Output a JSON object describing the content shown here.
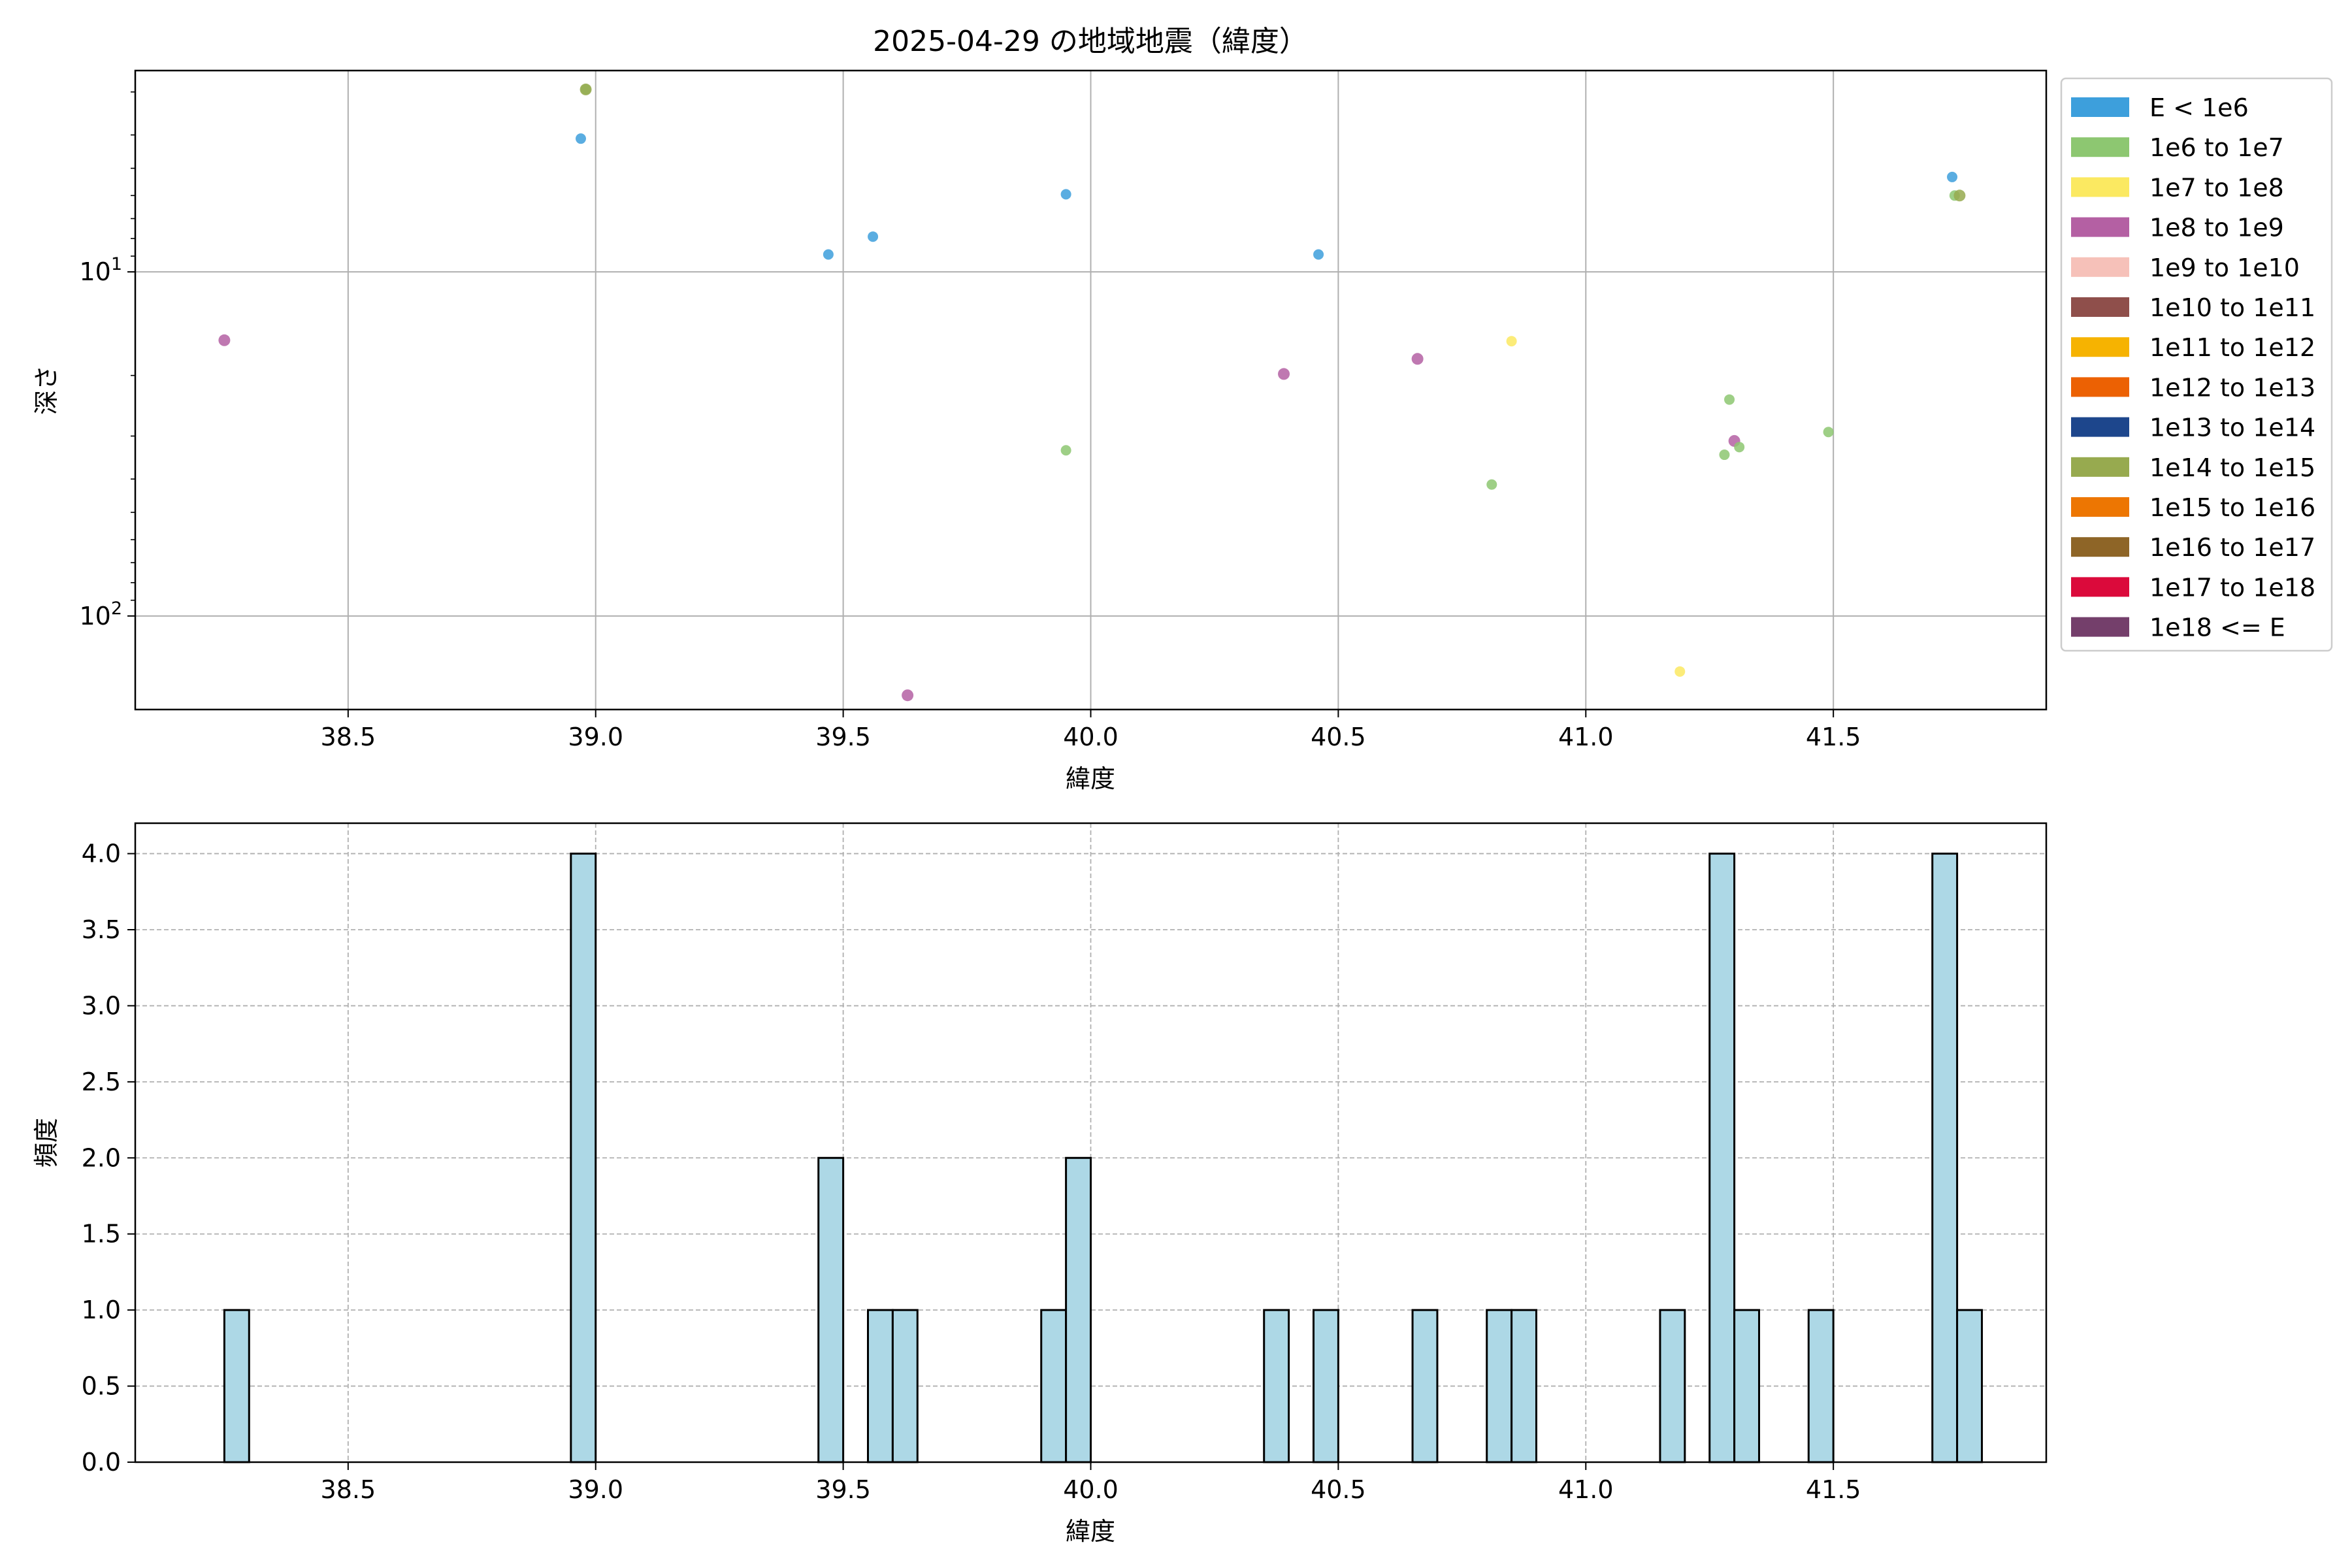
{
  "chart_data": [
    {
      "type": "scatter",
      "title": "2025-04-29 の地域地震（緯度）",
      "xlabel": "緯度",
      "ylabel": "深さ",
      "xlim": [
        38.07,
        41.93
      ],
      "ylim": [
        187,
        2.6
      ],
      "yscale": "log",
      "y_inverted": true,
      "grid": true,
      "x_ticks": [
        "38.5",
        "39.0",
        "39.5",
        "40.0",
        "40.5",
        "41.0",
        "41.5"
      ],
      "x_tick_values": [
        38.5,
        39.0,
        39.5,
        40.0,
        40.5,
        41.0,
        41.5
      ],
      "y_ticks": [
        {
          "value": 10,
          "base": "10",
          "exp": "1"
        },
        {
          "value": 100,
          "base": "10",
          "exp": "2"
        }
      ],
      "legend_position": "outside-right-top",
      "legend": [
        {
          "label": "E < 1e6",
          "color": "#3d9fdc"
        },
        {
          "label": "1e6 to 1e7",
          "color": "#8dc771"
        },
        {
          "label": "1e7 to 1e8",
          "color": "#fbe961"
        },
        {
          "label": "1e8 to 1e9",
          "color": "#b460a3"
        },
        {
          "label": "1e9 to 1e10",
          "color": "#f6c1b9"
        },
        {
          "label": "1e10 to 1e11",
          "color": "#8f4f4b"
        },
        {
          "label": "1e11 to 1e12",
          "color": "#f6b301"
        },
        {
          "label": "1e12 to 1e13",
          "color": "#ec6103"
        },
        {
          "label": "1e13 to 1e14",
          "color": "#1d468c"
        },
        {
          "label": "1e14 to 1e15",
          "color": "#97aa4f"
        },
        {
          "label": "1e15 to 1e16",
          "color": "#ed7602"
        },
        {
          "label": "1e16 to 1e17",
          "color": "#8e6527"
        },
        {
          "label": "1e17 to 1e18",
          "color": "#db0a3b"
        },
        {
          "label": "1e18 <= E",
          "color": "#743f6b"
        }
      ],
      "points": [
        {
          "x": 38.25,
          "y": 15.8,
          "cls": 3
        },
        {
          "x": 38.97,
          "y": 4.1,
          "cls": 0
        },
        {
          "x": 38.98,
          "y": 2.95,
          "cls": 1
        },
        {
          "x": 38.98,
          "y": 2.95,
          "cls": 9
        },
        {
          "x": 39.47,
          "y": 8.9,
          "cls": 0
        },
        {
          "x": 39.56,
          "y": 7.9,
          "cls": 0
        },
        {
          "x": 39.63,
          "y": 170,
          "cls": 3
        },
        {
          "x": 39.95,
          "y": 5.95,
          "cls": 0
        },
        {
          "x": 39.95,
          "y": 33,
          "cls": 1
        },
        {
          "x": 40.39,
          "y": 19.8,
          "cls": 3
        },
        {
          "x": 40.46,
          "y": 8.9,
          "cls": 0
        },
        {
          "x": 40.66,
          "y": 17.9,
          "cls": 3
        },
        {
          "x": 40.81,
          "y": 41.5,
          "cls": 1
        },
        {
          "x": 40.85,
          "y": 15.9,
          "cls": 2
        },
        {
          "x": 41.19,
          "y": 145,
          "cls": 2
        },
        {
          "x": 41.28,
          "y": 34,
          "cls": 1
        },
        {
          "x": 41.29,
          "y": 23.5,
          "cls": 1
        },
        {
          "x": 41.3,
          "y": 31,
          "cls": 3
        },
        {
          "x": 41.31,
          "y": 32.3,
          "cls": 1
        },
        {
          "x": 41.49,
          "y": 29.2,
          "cls": 1
        },
        {
          "x": 41.74,
          "y": 5.3,
          "cls": 0
        },
        {
          "x": 41.745,
          "y": 6.0,
          "cls": 1
        },
        {
          "x": 41.755,
          "y": 6.0,
          "cls": 9
        }
      ]
    },
    {
      "type": "bar",
      "subtype": "histogram",
      "xlabel": "緯度",
      "ylabel": "頻度",
      "xlim": [
        38.07,
        41.93
      ],
      "ylim": [
        0,
        4.2
      ],
      "grid": true,
      "grid_style": "dashed",
      "bar_color": "#add8e6",
      "bin_width": 0.05,
      "x_ticks": [
        "38.5",
        "39.0",
        "39.5",
        "40.0",
        "40.5",
        "41.0",
        "41.5"
      ],
      "x_tick_values": [
        38.5,
        39.0,
        39.5,
        40.0,
        40.5,
        41.0,
        41.5
      ],
      "y_ticks": [
        "0.0",
        "0.5",
        "1.0",
        "1.5",
        "2.0",
        "2.5",
        "3.0",
        "3.5",
        "4.0"
      ],
      "y_tick_values": [
        0,
        0.5,
        1.0,
        1.5,
        2.0,
        2.5,
        3.0,
        3.5,
        4.0
      ],
      "bins": [
        {
          "start": 38.25,
          "value": 1
        },
        {
          "start": 38.95,
          "value": 4
        },
        {
          "start": 39.45,
          "value": 2
        },
        {
          "start": 39.55,
          "value": 1
        },
        {
          "start": 39.6,
          "value": 1
        },
        {
          "start": 39.9,
          "value": 1
        },
        {
          "start": 39.95,
          "value": 2
        },
        {
          "start": 40.35,
          "value": 1
        },
        {
          "start": 40.45,
          "value": 1
        },
        {
          "start": 40.65,
          "value": 1
        },
        {
          "start": 40.8,
          "value": 1
        },
        {
          "start": 40.85,
          "value": 1
        },
        {
          "start": 41.15,
          "value": 1
        },
        {
          "start": 41.25,
          "value": 4
        },
        {
          "start": 41.3,
          "value": 1
        },
        {
          "start": 41.45,
          "value": 1
        },
        {
          "start": 41.7,
          "value": 4
        },
        {
          "start": 41.75,
          "value": 1
        }
      ]
    }
  ]
}
